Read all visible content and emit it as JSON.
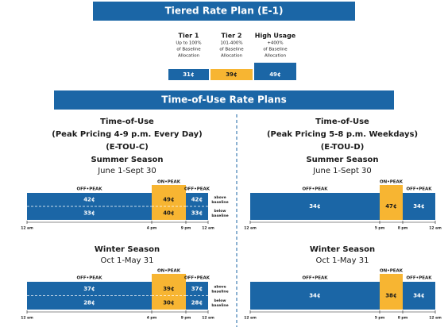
{
  "tiered": {
    "title": "Tiered Rate Plan (E-1)",
    "tiers": [
      {
        "name": "Tier 1",
        "desc": [
          "Up to 100%",
          "of Baseline",
          "Allocation"
        ],
        "rate": "31¢"
      },
      {
        "name": "Tier 2",
        "desc": [
          "101-400%",
          "of Baseline",
          "Allocation"
        ],
        "rate": "39¢"
      },
      {
        "name": "High Usage",
        "desc": [
          "+400%",
          "of Baseline",
          "Allocation"
        ],
        "rate": "49¢"
      }
    ]
  },
  "tou": {
    "title": "Time-of-Use Rate Plans",
    "baseline": {
      "above": [
        "above",
        "baseline"
      ],
      "below": [
        "below",
        "baseline"
      ]
    },
    "plans": [
      {
        "heading": "Time-of-Use",
        "subheading": "(Peak Pricing 4-9 p.m. Every Day)",
        "code": "(E-TOU-C)",
        "times": [
          "12 am",
          "4 pm",
          "9 pm",
          "12 am"
        ],
        "seasons": [
          {
            "name": "Summer Season",
            "dates": "June 1-Sept 30",
            "periods": [
              {
                "label": "OFF•PEAK",
                "rates": [
                  "42¢",
                  "33¢"
                ]
              },
              {
                "label": "ON•PEAK",
                "rates": [
                  "49¢",
                  "40¢"
                ]
              },
              {
                "label": "OFF•PEAK",
                "rates": [
                  "42¢",
                  "33¢"
                ]
              }
            ]
          },
          {
            "name": "Winter Season",
            "dates": "Oct 1-May 31",
            "periods": [
              {
                "label": "OFF•PEAK",
                "rates": [
                  "37¢",
                  "28¢"
                ]
              },
              {
                "label": "ON•PEAK",
                "rates": [
                  "39¢",
                  "30¢"
                ]
              },
              {
                "label": "OFF•PEAK",
                "rates": [
                  "37¢",
                  "28¢"
                ]
              }
            ]
          }
        ]
      },
      {
        "heading": "Time-of-Use",
        "subheading": "(Peak Pricing 5-8 p.m. Weekdays)",
        "code": "(E-TOU-D)",
        "times": [
          "12 am",
          "5 pm",
          "8 pm",
          "12 am"
        ],
        "seasons": [
          {
            "name": "Summer Season",
            "dates": "June 1-Sept 30",
            "periods": [
              {
                "label": "OFF•PEAK",
                "rates": [
                  "34¢"
                ]
              },
              {
                "label": "ON•PEAK",
                "rates": [
                  "47¢"
                ]
              },
              {
                "label": "OFF•PEAK",
                "rates": [
                  "34¢"
                ]
              }
            ]
          },
          {
            "name": "Winter Season",
            "dates": "Oct 1-May 31",
            "periods": [
              {
                "label": "OFF•PEAK",
                "rates": [
                  "34¢"
                ]
              },
              {
                "label": "ON•PEAK",
                "rates": [
                  "38¢"
                ]
              },
              {
                "label": "OFF•PEAK",
                "rates": [
                  "34¢"
                ]
              }
            ]
          }
        ]
      }
    ]
  }
}
